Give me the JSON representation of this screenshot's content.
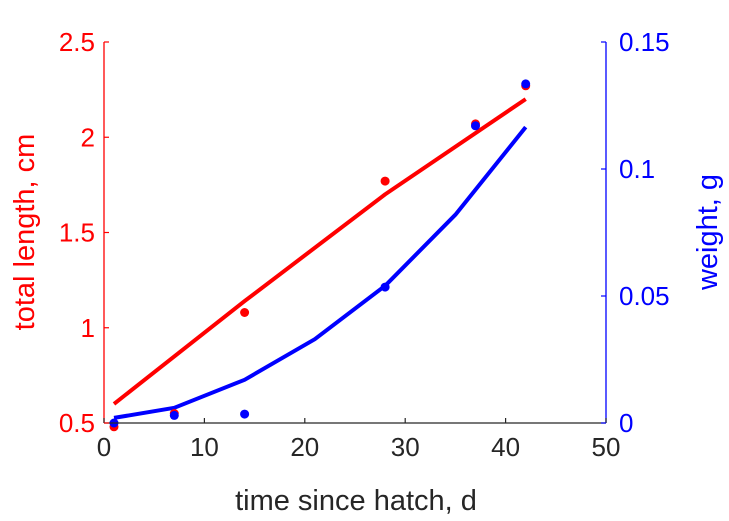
{
  "chart_data": {
    "type": "scatter",
    "xlabel": "time since hatch, d",
    "ylabel_left": "total length, cm",
    "ylabel_right": "weight, g",
    "xlim": [
      0,
      50
    ],
    "ylim_left": [
      0.5,
      2.5
    ],
    "ylim_right": [
      0,
      0.15
    ],
    "x_ticks": [
      "0",
      "10",
      "20",
      "30",
      "40",
      "50"
    ],
    "y_left_ticks": [
      "0.5",
      "1",
      "1.5",
      "2",
      "2.5"
    ],
    "y_right_ticks": [
      "0",
      "0.05",
      "0.1",
      "0.15"
    ],
    "grid": false,
    "colors": {
      "left": "#ff0000",
      "right": "#0000ff",
      "axis": "#262626"
    },
    "series": [
      {
        "axis": "left",
        "color": "#ff0000",
        "points": [
          {
            "x": 1,
            "y": 0.48
          },
          {
            "x": 7,
            "y": 0.55
          },
          {
            "x": 14,
            "y": 1.08
          },
          {
            "x": 28,
            "y": 1.77
          },
          {
            "x": 37,
            "y": 2.07
          },
          {
            "x": 42,
            "y": 2.27
          }
        ],
        "fit": [
          {
            "x": 1,
            "y": 0.6
          },
          {
            "x": 14,
            "y": 1.14
          },
          {
            "x": 28,
            "y": 1.7
          },
          {
            "x": 42,
            "y": 2.2
          }
        ]
      },
      {
        "axis": "right",
        "color": "#0000ff",
        "points": [
          {
            "x": 1,
            "y": 0.0
          },
          {
            "x": 7,
            "y": 0.003
          },
          {
            "x": 14,
            "y": 0.0035
          },
          {
            "x": 28,
            "y": 0.0535
          },
          {
            "x": 37,
            "y": 0.117
          },
          {
            "x": 42,
            "y": 0.1335
          }
        ],
        "fit": [
          {
            "x": 1,
            "y": 0.002
          },
          {
            "x": 7,
            "y": 0.006
          },
          {
            "x": 14,
            "y": 0.017
          },
          {
            "x": 21,
            "y": 0.033
          },
          {
            "x": 28,
            "y": 0.054
          },
          {
            "x": 35,
            "y": 0.082
          },
          {
            "x": 42,
            "y": 0.1165
          }
        ]
      }
    ]
  }
}
